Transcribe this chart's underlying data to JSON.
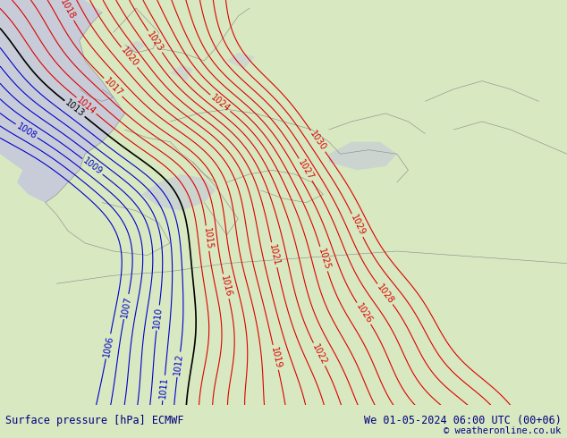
{
  "title_left": "Surface pressure [hPa] ECMWF",
  "title_right": "We 01-05-2024 06:00 UTC (00+06)",
  "copyright": "© weatheronline.co.uk",
  "bg_color": "#b8dc80",
  "land_color": "#b8dc80",
  "water_color": "#c8ccd8",
  "text_color": "#000080",
  "red_contour_color": "#dd0000",
  "blue_contour_color": "#0000cc",
  "black_contour_color": "#000000",
  "bottom_bar_color": "#d8e8c0",
  "figsize": [
    6.34,
    4.9
  ],
  "dpi": 100,
  "font_size_bottom": 8.5,
  "font_size_labels": 7,
  "red_isobars": [
    1014,
    1015,
    1016,
    1017,
    1018,
    1019,
    1020,
    1021,
    1022,
    1023,
    1024,
    1025,
    1026,
    1027,
    1028,
    1029,
    1030
  ],
  "blue_isobars": [
    1006,
    1007,
    1008,
    1009,
    1010,
    1011,
    1012
  ],
  "black_isobars": [
    1013
  ]
}
